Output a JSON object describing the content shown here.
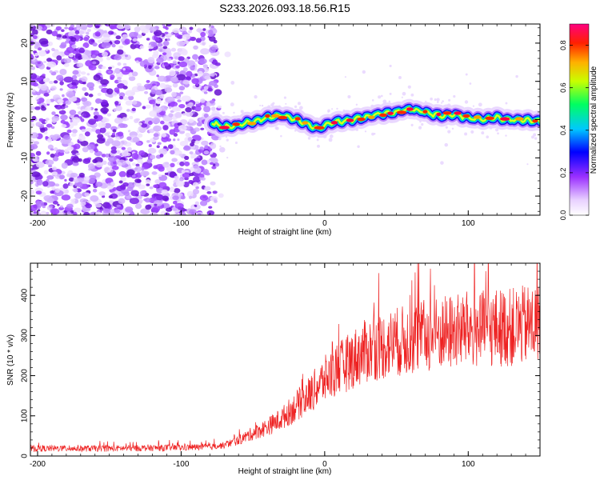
{
  "title": "S233.2026.093.18.56.R15",
  "colors": {
    "snr_line": "#ee2222",
    "axis": "#000000",
    "scatter_base": "#8a2be2"
  },
  "chart_data": [
    {
      "type": "heatmap",
      "name": "spectrogram",
      "xlabel": "Height of straight line (km)",
      "ylabel": "Frequency (Hz)",
      "xlim": [
        -205,
        150
      ],
      "ylim": [
        -25,
        25
      ],
      "x_ticks": [
        -200,
        -100,
        0,
        100
      ],
      "y_ticks": [
        -20,
        -10,
        0,
        10,
        20
      ],
      "colorbar": {
        "label": "Normalized spectral amplitude",
        "range": [
          0,
          0.9
        ],
        "ticks": [
          0.0,
          0.2,
          0.4,
          0.6,
          0.8
        ],
        "stops": [
          "#ffffff",
          "#e8d0ff",
          "#9b30ff",
          "#0000ff",
          "#00c8ff",
          "#00ff60",
          "#c8ff00",
          "#ffb000",
          "#ff2000",
          "#ff0080"
        ]
      },
      "noise_region_x": [
        -205,
        -75
      ],
      "ridge_center": {
        "x": [
          -78,
          -70,
          -60,
          -50,
          -40,
          -30,
          -20,
          -10,
          -5,
          0,
          5,
          10,
          20,
          30,
          40,
          50,
          60,
          70,
          80,
          90,
          100,
          110,
          120,
          130,
          140,
          150
        ],
        "y": [
          -1,
          -2,
          -1.5,
          -0.5,
          0.5,
          1,
          0,
          -1.5,
          -2.5,
          -1.5,
          -0.8,
          -0.5,
          0,
          0.8,
          1.5,
          2,
          2.8,
          2,
          1,
          1.5,
          0.5,
          0,
          0.5,
          0,
          0,
          -0.5
        ]
      }
    },
    {
      "type": "line",
      "name": "snr",
      "xlabel": "Height of straight line (km)",
      "ylabel": "SNR (10 * v/v)",
      "xlim": [
        -205,
        150
      ],
      "ylim": [
        0,
        480
      ],
      "x_ticks": [
        -200,
        -100,
        0,
        100
      ],
      "y_ticks": [
        0,
        100,
        200,
        300,
        400
      ],
      "trend": {
        "x": [
          -205,
          -150,
          -100,
          -80,
          -70,
          -60,
          -50,
          -40,
          -30,
          -20,
          -10,
          0,
          10,
          20,
          30,
          40,
          50,
          60,
          70,
          80,
          90,
          100,
          110,
          120,
          130,
          140,
          150
        ],
        "y": [
          18,
          18,
          20,
          22,
          26,
          38,
          55,
          70,
          90,
          120,
          150,
          185,
          210,
          235,
          255,
          265,
          275,
          280,
          290,
          295,
          300,
          305,
          305,
          310,
          310,
          315,
          320
        ]
      }
    }
  ]
}
